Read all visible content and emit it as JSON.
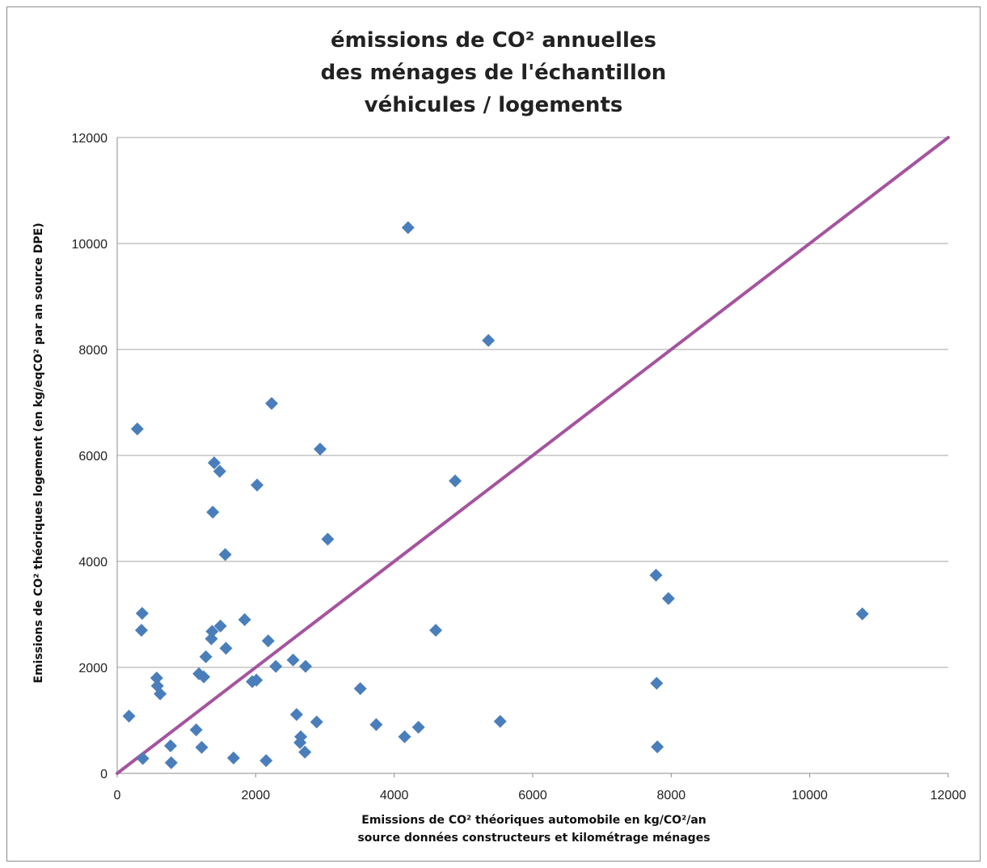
{
  "chart_data": {
    "type": "scatter",
    "title_lines": [
      "émissions de CO² annuelles",
      "des ménages de l'échantillon",
      "véhicules / logements"
    ],
    "xlabel_lines": [
      "Emissions de CO² théoriques automobile en kg/CO²/an",
      "source données constructeurs et kilométrage ménages"
    ],
    "ylabel": "Emissions de CO² théoriques logement (en kg/eqCO² par an source DPE)",
    "xlim": [
      0,
      12000
    ],
    "ylim": [
      0,
      12000
    ],
    "xticks": [
      "0",
      "2000",
      "4000",
      "6000",
      "8000",
      "10000",
      "12000"
    ],
    "yticks": [
      "0",
      "2000",
      "4000",
      "6000",
      "8000",
      "10000",
      "12000"
    ],
    "grid": "horizontal",
    "marker_color": "#4a7ebb",
    "line_color": "#a5549e",
    "reference_line": [
      [
        0,
        0
      ],
      [
        12000,
        12000
      ]
    ],
    "points": [
      [
        170,
        1080
      ],
      [
        290,
        6500
      ],
      [
        350,
        2700
      ],
      [
        360,
        3020
      ],
      [
        370,
        280
      ],
      [
        570,
        1800
      ],
      [
        580,
        1650
      ],
      [
        620,
        1500
      ],
      [
        770,
        520
      ],
      [
        780,
        200
      ],
      [
        1140,
        820
      ],
      [
        1180,
        1880
      ],
      [
        1220,
        490
      ],
      [
        1250,
        1820
      ],
      [
        1280,
        2200
      ],
      [
        1360,
        2540
      ],
      [
        1370,
        2680
      ],
      [
        1380,
        4930
      ],
      [
        1400,
        5860
      ],
      [
        1480,
        5700
      ],
      [
        1490,
        2780
      ],
      [
        1560,
        4130
      ],
      [
        1570,
        2360
      ],
      [
        1680,
        290
      ],
      [
        1840,
        2900
      ],
      [
        1950,
        1730
      ],
      [
        2010,
        1760
      ],
      [
        2020,
        5440
      ],
      [
        2150,
        240
      ],
      [
        2180,
        2500
      ],
      [
        2230,
        6980
      ],
      [
        2290,
        2020
      ],
      [
        2540,
        2140
      ],
      [
        2590,
        1110
      ],
      [
        2640,
        580
      ],
      [
        2650,
        690
      ],
      [
        2710,
        400
      ],
      [
        2720,
        2020
      ],
      [
        2880,
        970
      ],
      [
        2930,
        6120
      ],
      [
        3040,
        4420
      ],
      [
        3510,
        1600
      ],
      [
        3740,
        920
      ],
      [
        4150,
        690
      ],
      [
        4200,
        10300
      ],
      [
        4350,
        870
      ],
      [
        4600,
        2700
      ],
      [
        4880,
        5520
      ],
      [
        5360,
        8170
      ],
      [
        5530,
        980
      ],
      [
        7780,
        3740
      ],
      [
        7790,
        1700
      ],
      [
        7800,
        500
      ],
      [
        7960,
        3300
      ],
      [
        10760,
        3010
      ]
    ]
  }
}
